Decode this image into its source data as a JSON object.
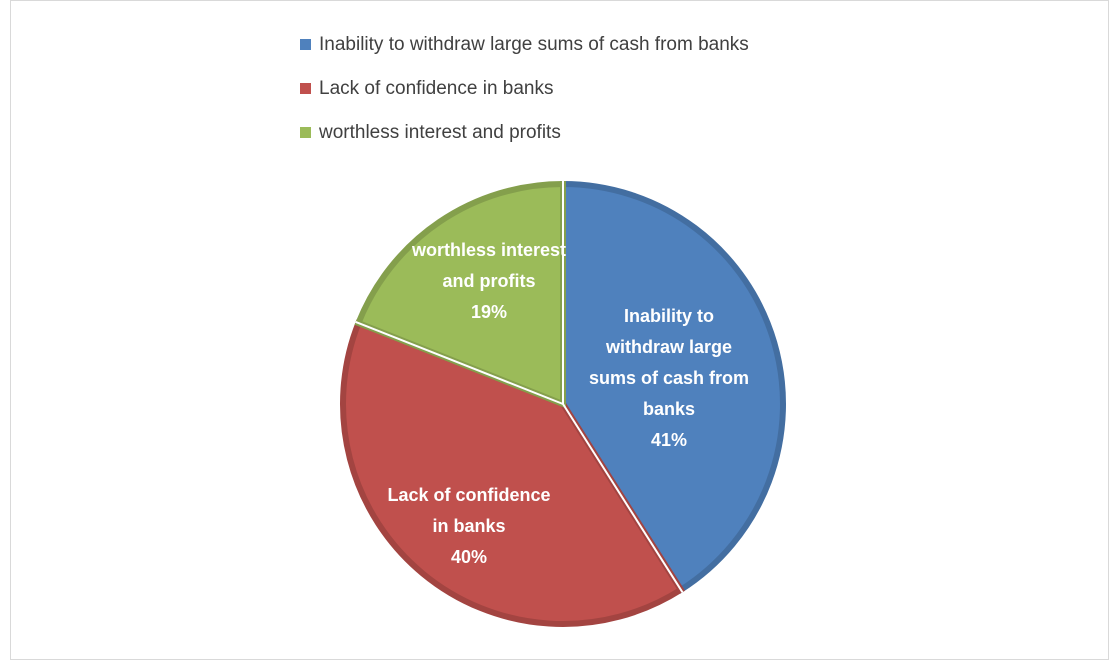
{
  "chart_data": {
    "type": "pie",
    "title": "",
    "categories": [
      "Inability to withdraw large sums of cash from banks",
      "Lack of confidence in banks",
      "worthless interest and profits"
    ],
    "values": [
      41,
      40,
      19
    ],
    "unit": "%",
    "colors": [
      "#4f81bd",
      "#c0504d",
      "#9bbb59"
    ],
    "slice_labels": [
      {
        "lines": [
          "Inability to",
          "withdraw large",
          "sums of cash from",
          "banks"
        ],
        "percent": "41%"
      },
      {
        "lines": [
          "Lack of confidence",
          "in banks"
        ],
        "percent": "40%"
      },
      {
        "lines": [
          "worthless interest",
          "and profits"
        ],
        "percent": "19%"
      }
    ],
    "legend_position": "top",
    "start_angle": "12 o'clock",
    "direction": "clockwise"
  }
}
